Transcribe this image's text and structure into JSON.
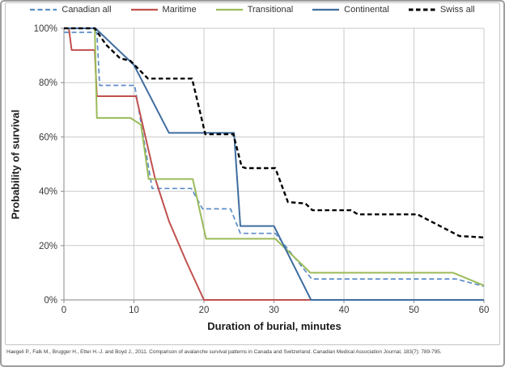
{
  "chart_data": {
    "type": "line",
    "title": "",
    "xlabel": "Duration of burial, minutes",
    "ylabel": "Probability of survival",
    "xlim": [
      0,
      60
    ],
    "ylim": [
      0,
      100
    ],
    "x_tick_values": [
      0,
      10,
      20,
      30,
      40,
      50,
      60
    ],
    "x_tick_labels": [
      "0",
      "10",
      "20",
      "30",
      "40",
      "50",
      "60"
    ],
    "y_tick_values": [
      0,
      20,
      40,
      60,
      80,
      100
    ],
    "y_tick_labels": [
      "0%",
      "20%",
      "40%",
      "60%",
      "80%",
      "100%"
    ],
    "grid": true,
    "legend_position": "top",
    "series": [
      {
        "name": "Canadian all",
        "color": "#5b8dc8",
        "dash": "dashed",
        "width": 1.7,
        "points": [
          [
            0,
            98.5
          ],
          [
            4.7,
            98.5
          ],
          [
            5.1,
            79
          ],
          [
            10.1,
            79
          ],
          [
            12.6,
            41
          ],
          [
            18.2,
            41
          ],
          [
            19.8,
            33.5
          ],
          [
            23.8,
            33.5
          ],
          [
            25.2,
            24.5
          ],
          [
            30.2,
            24.5
          ],
          [
            35.4,
            7.7
          ],
          [
            56,
            7.7
          ],
          [
            60,
            5
          ]
        ]
      },
      {
        "name": "Maritime",
        "color": "#c0504d",
        "dash": "solid",
        "width": 2,
        "points": [
          [
            0,
            100
          ],
          [
            0.7,
            100
          ],
          [
            1.1,
            92
          ],
          [
            4.4,
            92
          ],
          [
            4.7,
            75
          ],
          [
            10.3,
            75
          ],
          [
            13,
            45
          ],
          [
            15,
            29
          ],
          [
            17.5,
            14
          ],
          [
            20,
            0
          ],
          [
            60,
            0
          ]
        ]
      },
      {
        "name": "Transitional",
        "color": "#9bbb59",
        "dash": "solid",
        "width": 2,
        "points": [
          [
            0,
            100
          ],
          [
            4.4,
            100
          ],
          [
            4.7,
            67
          ],
          [
            9.5,
            67
          ],
          [
            11,
            64.5
          ],
          [
            12.1,
            44.5
          ],
          [
            18.4,
            44.5
          ],
          [
            20.3,
            22.5
          ],
          [
            30.2,
            22.5
          ],
          [
            35.2,
            10
          ],
          [
            55.6,
            10
          ],
          [
            60,
            5.3
          ]
        ]
      },
      {
        "name": "Continental",
        "color": "#3f6d9f",
        "dash": "solid",
        "width": 2,
        "points": [
          [
            0,
            100
          ],
          [
            4.5,
            100
          ],
          [
            10,
            86.5
          ],
          [
            15,
            61.5
          ],
          [
            24.3,
            61.5
          ],
          [
            25.2,
            27.2
          ],
          [
            30,
            27.2
          ],
          [
            35.3,
            0
          ],
          [
            60,
            0
          ]
        ]
      },
      {
        "name": "Swiss all",
        "color": "#000000",
        "dash": "dashed-bold",
        "width": 2.4,
        "points": [
          [
            0,
            100
          ],
          [
            4.4,
            100
          ],
          [
            6,
            94
          ],
          [
            8,
            89
          ],
          [
            9.5,
            88
          ],
          [
            12,
            81.5
          ],
          [
            18.3,
            81.5
          ],
          [
            20.2,
            61
          ],
          [
            24.2,
            61
          ],
          [
            25.4,
            49
          ],
          [
            26,
            48.5
          ],
          [
            30.2,
            48.5
          ],
          [
            32,
            36
          ],
          [
            34.5,
            35.5
          ],
          [
            35.5,
            33
          ],
          [
            41,
            33
          ],
          [
            42,
            31.5
          ],
          [
            50.5,
            31.5
          ],
          [
            56.5,
            23.5
          ],
          [
            60,
            23
          ]
        ]
      }
    ]
  },
  "footer": {
    "citation": "Haegeli P., Falk M., Brugger H., Etter H.-J. and Boyd J., 2011. Comparison of avalanche survival patterns in Canada and Switzerland. Canadian Medical Association Journal, 183(7): 789-795."
  },
  "colors": {
    "grid": "#c9c9c9",
    "axis": "#9b9b9b",
    "tick_label": "#3a3a3a",
    "frame": "#c3c3c3",
    "outer_border": "#9e9e9e"
  }
}
